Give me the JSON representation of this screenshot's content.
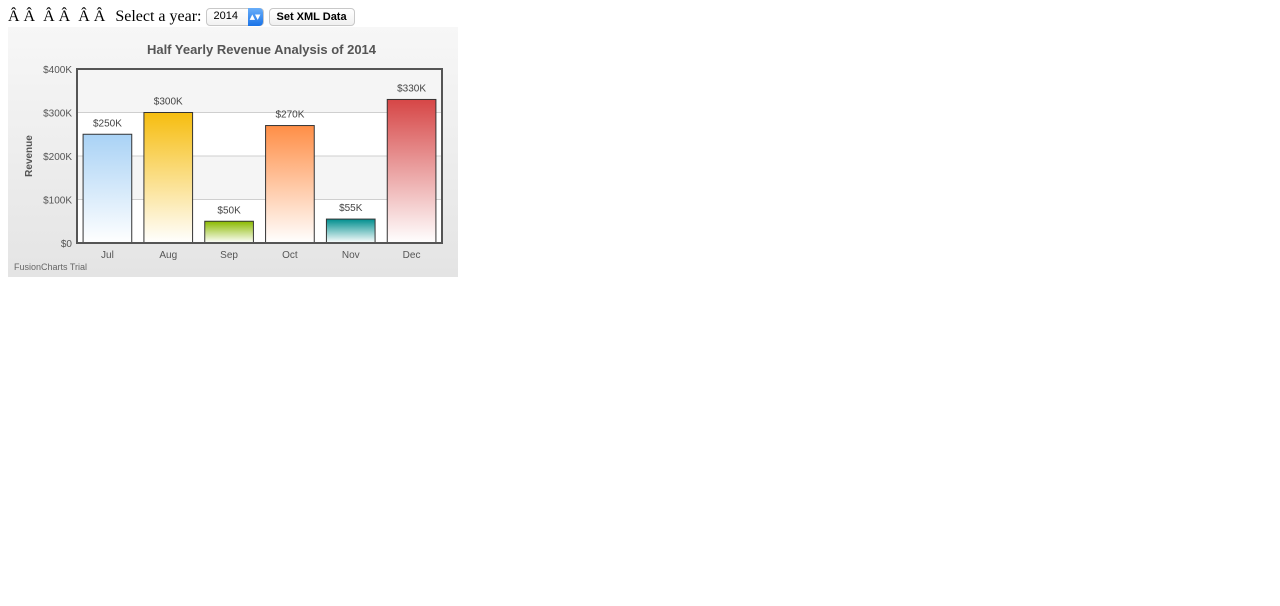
{
  "toolbar": {
    "prefix": "Â Â  Â Â  Â Â ",
    "select_label": "Select a year:",
    "year_selected": "2014",
    "button_label": "Set XML Data"
  },
  "chart_data": {
    "type": "bar",
    "title": "Half Yearly Revenue Analysis of 2014",
    "xlabel": "",
    "ylabel": "Revenue",
    "categories": [
      "Jul",
      "Aug",
      "Sep",
      "Oct",
      "Nov",
      "Dec"
    ],
    "values": [
      250,
      300,
      50,
      270,
      55,
      330
    ],
    "value_labels": [
      "$250K",
      "$300K",
      "$50K",
      "$270K",
      "$55K",
      "$330K"
    ],
    "y_ticks": [
      "$0",
      "$100K",
      "$200K",
      "$300K",
      "$400K"
    ],
    "ylim": [
      0,
      400
    ],
    "units": "thousands of dollars",
    "colors": [
      "#a9d2f5",
      "#f6bd0f",
      "#8bba00",
      "#ff8e46",
      "#008e8e",
      "#d64646"
    ],
    "grid": true,
    "watermark": "FusionCharts Trial"
  }
}
